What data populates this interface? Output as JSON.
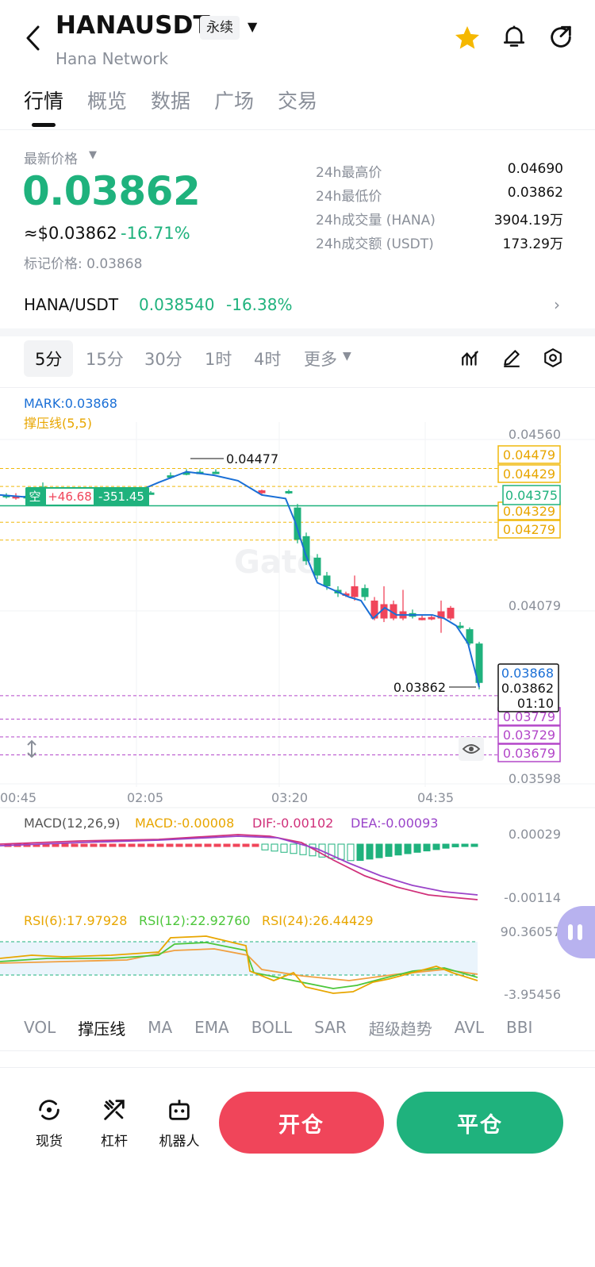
{
  "header": {
    "symbol": "HANAUSDT",
    "contract_tag": "永续",
    "name": "Hana Network"
  },
  "tabs": [
    "行情",
    "概览",
    "数据",
    "广场",
    "交易"
  ],
  "price": {
    "label": "最新价格",
    "last": "0.03862",
    "usd": "≈$0.03862",
    "change": "-16.71%",
    "mark_label": "标记价格: 0.03868"
  },
  "stats": [
    {
      "label": "24h最高价",
      "value": "0.04690"
    },
    {
      "label": "24h最低价",
      "value": "0.03862"
    },
    {
      "label": "24h成交量 (HANA)",
      "value": "3904.19万"
    },
    {
      "label": "24h成交额 (USDT)",
      "value": "173.29万"
    }
  ],
  "spot_pair": {
    "name": "HANA/USDT",
    "price": "0.038540",
    "change": "-16.38%"
  },
  "intervals": [
    "5分",
    "15分",
    "30分",
    "1时",
    "4时",
    "更多"
  ],
  "chart": {
    "mark_label": "MARK:0.03868",
    "sr_label": "撑压线(5,5)",
    "y_axis": [
      "0.04560",
      "0.04079",
      "0.03598"
    ],
    "x_axis": [
      "00:45",
      "02:05",
      "03:20",
      "04:35"
    ],
    "resistance_levels": [
      "0.04479",
      "0.04429",
      "0.04329",
      "0.04279"
    ],
    "support_levels": [
      "0.03779",
      "0.03729",
      "0.03679"
    ],
    "position_level": "0.04375",
    "high_marker": "0.04477",
    "last_marker": "0.03862",
    "price_box": {
      "mark": "0.03868",
      "last": "0.03862",
      "countdown": "01:10"
    },
    "position": {
      "side": "空",
      "pnl": "+46.68",
      "size": "-351.45"
    },
    "watermark": "Gate",
    "colors": {
      "up": "#1fb27d",
      "down": "#f0455a",
      "resist": "#f0b90b",
      "support": "#b347c9",
      "mark": "#1a6fd6"
    }
  },
  "macd": {
    "title": "MACD(12,26,9)",
    "macd": "MACD:-0.00008",
    "dif": "DIF:-0.00102",
    "dea": "DEA:-0.00093",
    "y_axis": [
      "0.00029",
      "-0.00114"
    ]
  },
  "rsi": {
    "rsi6": "RSI(6):17.97928",
    "rsi12": "RSI(12):22.92760",
    "rsi24": "RSI(24):26.44429",
    "y_axis": [
      "90.36057",
      "-3.95456"
    ]
  },
  "indicators": [
    "VOL",
    "撑压线",
    "MA",
    "EMA",
    "BOLL",
    "SAR",
    "超级趋势",
    "AVL",
    "BBI"
  ],
  "bottom": {
    "spot": "现货",
    "leverage": "杠杆",
    "bot": "机器人",
    "open": "开仓",
    "close": "平仓"
  }
}
